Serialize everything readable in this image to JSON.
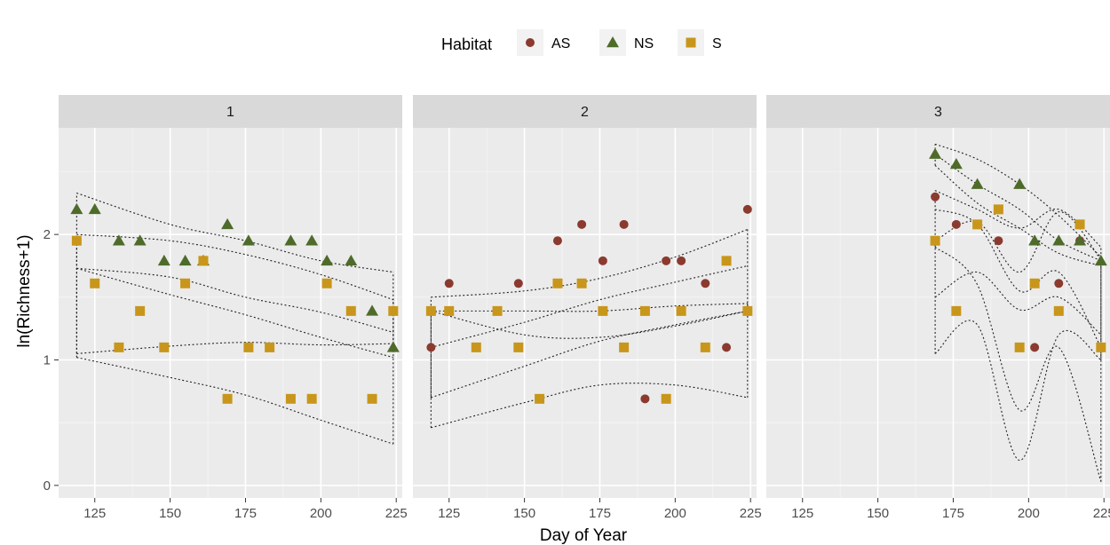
{
  "chart_data": {
    "type": "scatter",
    "xlabel": "Day of Year",
    "ylabel": "ln(Richness+1)",
    "xlim": [
      113,
      227
    ],
    "ylim": [
      -0.1,
      2.85
    ],
    "x_ticks": [
      125,
      150,
      175,
      200,
      225
    ],
    "y_ticks": [
      0,
      1,
      2
    ],
    "grid": true,
    "legend": {
      "title": "Habitat",
      "position": "top"
    },
    "colors": {
      "AS": "#8B3A2F",
      "NS": "#4E6B2A",
      "S": "#C8961A"
    },
    "panels": [
      {
        "label": "1",
        "series": [
          {
            "name": "AS",
            "marker": "circle",
            "points": [
              [
                183,
                1.1
              ]
            ]
          },
          {
            "name": "NS",
            "marker": "triangle",
            "points": [
              [
                119,
                2.2
              ],
              [
                125,
                2.2
              ],
              [
                133,
                1.95
              ],
              [
                140,
                1.95
              ],
              [
                148,
                1.79
              ],
              [
                155,
                1.79
              ],
              [
                161,
                1.79
              ],
              [
                169,
                2.08
              ],
              [
                176,
                1.95
              ],
              [
                190,
                1.95
              ],
              [
                197,
                1.95
              ],
              [
                202,
                1.79
              ],
              [
                210,
                1.79
              ],
              [
                217,
                1.39
              ],
              [
                224,
                1.1
              ]
            ]
          },
          {
            "name": "S",
            "marker": "square",
            "points": [
              [
                119,
                1.95
              ],
              [
                125,
                1.61
              ],
              [
                133,
                1.1
              ],
              [
                140,
                1.39
              ],
              [
                148,
                1.1
              ],
              [
                155,
                1.61
              ],
              [
                161,
                1.79
              ],
              [
                169,
                0.69
              ],
              [
                176,
                1.1
              ],
              [
                183,
                1.1
              ],
              [
                190,
                0.69
              ],
              [
                197,
                0.69
              ],
              [
                202,
                1.61
              ],
              [
                210,
                1.39
              ],
              [
                217,
                0.69
              ],
              [
                224,
                1.39
              ]
            ]
          }
        ],
        "fits": [
          {
            "name": "NS",
            "x": [
              119,
              150,
              175,
              200,
              224
            ],
            "y": [
              1.73,
              1.52,
              1.36,
              1.18,
              1.02
            ],
            "lower": [
              1.02,
              0.86,
              0.72,
              0.52,
              0.33
            ],
            "upper": [
              2.33,
              2.08,
              1.95,
              1.79,
              1.7
            ]
          },
          {
            "name": "S",
            "x": [
              119,
              150,
              175,
              200,
              224
            ],
            "y": [
              1.73,
              1.66,
              1.5,
              1.38,
              1.22
            ],
            "lower": [
              1.05,
              1.11,
              1.14,
              1.12,
              1.13
            ],
            "upper": [
              2.0,
              1.95,
              1.84,
              1.68,
              1.48
            ]
          }
        ]
      },
      {
        "label": "2",
        "series": [
          {
            "name": "AS",
            "marker": "circle",
            "points": [
              [
                119,
                1.1
              ],
              [
                125,
                1.61
              ],
              [
                134,
                1.1
              ],
              [
                141,
                1.39
              ],
              [
                148,
                1.61
              ],
              [
                155,
                0.69
              ],
              [
                161,
                1.95
              ],
              [
                169,
                2.08
              ],
              [
                176,
                1.79
              ],
              [
                183,
                2.08
              ],
              [
                190,
                0.69
              ],
              [
                197,
                1.79
              ],
              [
                202,
                1.79
              ],
              [
                210,
                1.61
              ],
              [
                217,
                1.1
              ],
              [
                224,
                2.2
              ]
            ]
          },
          {
            "name": "S",
            "marker": "square",
            "points": [
              [
                119,
                1.39
              ],
              [
                125,
                1.39
              ],
              [
                134,
                1.1
              ],
              [
                141,
                1.39
              ],
              [
                148,
                1.1
              ],
              [
                155,
                0.69
              ],
              [
                161,
                1.61
              ],
              [
                169,
                1.61
              ],
              [
                176,
                1.39
              ],
              [
                183,
                1.1
              ],
              [
                190,
                1.39
              ],
              [
                197,
                0.69
              ],
              [
                202,
                1.39
              ],
              [
                210,
                1.1
              ],
              [
                217,
                1.79
              ],
              [
                224,
                1.39
              ]
            ]
          }
        ],
        "fits": [
          {
            "name": "AS",
            "x": [
              119,
              150,
              175,
              200,
              224
            ],
            "y": [
              1.1,
              1.3,
              1.48,
              1.62,
              1.75
            ],
            "lower": [
              0.7,
              0.95,
              1.15,
              1.28,
              1.39
            ],
            "upper": [
              1.5,
              1.55,
              1.65,
              1.82,
              2.04
            ]
          },
          {
            "name": "S",
            "x": [
              119,
              150,
              175,
              200,
              224
            ],
            "y": [
              1.39,
              1.2,
              1.18,
              1.27,
              1.39
            ],
            "lower": [
              0.46,
              0.66,
              0.8,
              0.8,
              0.7
            ],
            "upper": [
              1.39,
              1.39,
              1.39,
              1.43,
              1.45
            ]
          }
        ]
      },
      {
        "label": "3",
        "series": [
          {
            "name": "AS",
            "marker": "circle",
            "points": [
              [
                169,
                2.3
              ],
              [
                176,
                2.08
              ],
              [
                183,
                2.08
              ],
              [
                190,
                1.95
              ],
              [
                197,
                1.1
              ],
              [
                202,
                1.1
              ],
              [
                210,
                1.61
              ],
              [
                217,
                1.95
              ],
              [
                224,
                1.1
              ]
            ]
          },
          {
            "name": "NS",
            "marker": "triangle",
            "points": [
              [
                169,
                2.64
              ],
              [
                176,
                2.56
              ],
              [
                183,
                2.4
              ],
              [
                197,
                2.4
              ],
              [
                202,
                1.95
              ],
              [
                210,
                1.95
              ],
              [
                217,
                1.95
              ],
              [
                224,
                1.79
              ]
            ]
          },
          {
            "name": "S",
            "marker": "square",
            "points": [
              [
                169,
                1.95
              ],
              [
                176,
                1.39
              ],
              [
                183,
                2.08
              ],
              [
                190,
                2.2
              ],
              [
                197,
                1.1
              ],
              [
                202,
                1.61
              ],
              [
                210,
                1.39
              ],
              [
                217,
                2.08
              ],
              [
                224,
                1.1
              ]
            ]
          }
        ],
        "fits": [
          {
            "name": "NS",
            "x": [
              169,
              183,
              197,
              210,
              224
            ],
            "y": [
              2.64,
              2.4,
              2.2,
              1.95,
              1.79
            ],
            "lower": [
              2.55,
              2.25,
              2.05,
              1.85,
              1.75
            ],
            "upper": [
              2.72,
              2.6,
              2.4,
              2.15,
              1.82
            ]
          },
          {
            "name": "AS",
            "x": [
              169,
              183,
              197,
              210,
              224
            ],
            "y": [
              2.2,
              2.08,
              1.55,
              1.7,
              1.1
            ],
            "lower": [
              1.9,
              1.6,
              0.6,
              1.1,
              0.03
            ],
            "upper": [
              2.35,
              2.2,
              2.05,
              2.2,
              1.9
            ]
          },
          {
            "name": "S",
            "x": [
              169,
              183,
              197,
              210,
              224
            ],
            "y": [
              1.5,
              1.7,
              1.4,
              1.5,
              1.2
            ],
            "lower": [
              1.05,
              1.28,
              0.2,
              1.2,
              1.0
            ],
            "upper": [
              1.95,
              2.1,
              1.7,
              2.18,
              1.8
            ]
          }
        ]
      }
    ]
  }
}
